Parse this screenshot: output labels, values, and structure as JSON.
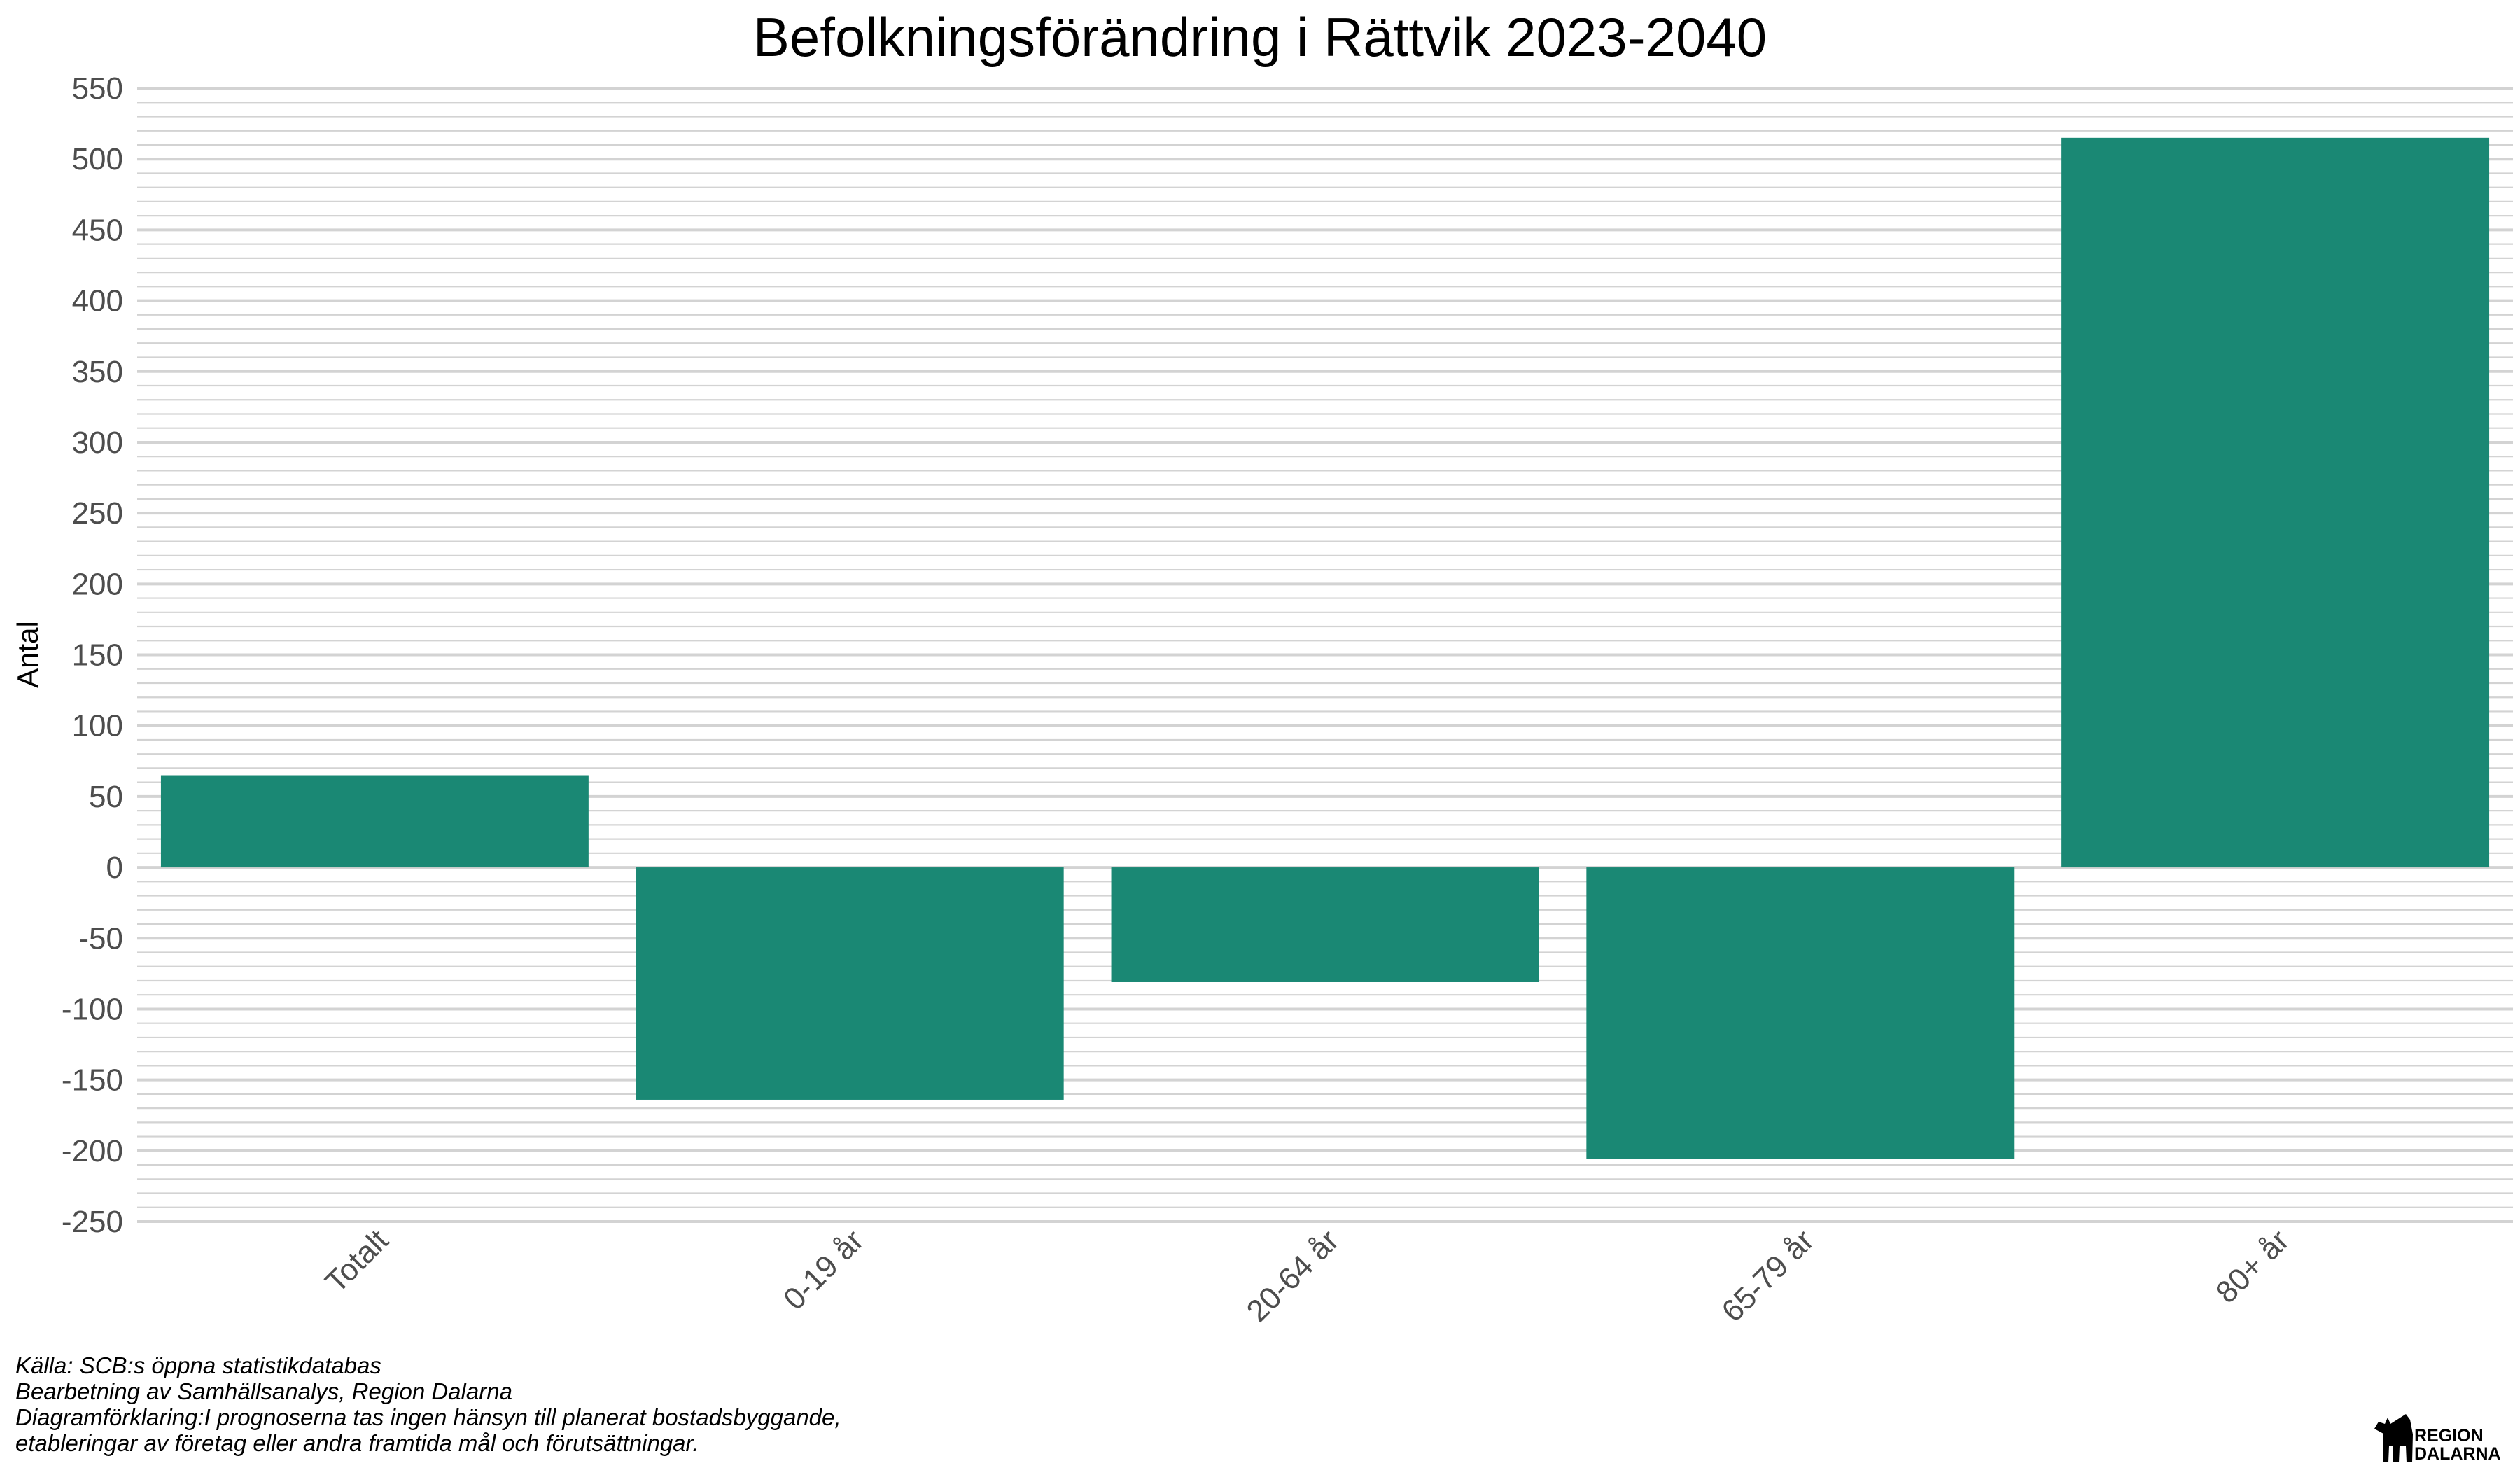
{
  "chart_data": {
    "type": "bar",
    "title": "Befolkningsförändring i Rättvik 2023-2040",
    "xlabel": "",
    "ylabel": "Antal",
    "categories": [
      "Totalt",
      "0-19 år",
      "20-64 år",
      "65-79 år",
      "80+ år"
    ],
    "values": [
      65,
      -164,
      -81,
      -206,
      515
    ],
    "ylim": [
      -250,
      550
    ],
    "yticks": [
      550,
      500,
      450,
      400,
      350,
      300,
      250,
      200,
      150,
      100,
      50,
      0,
      -50,
      -100,
      -150,
      -200,
      -250
    ],
    "minor_step": 10,
    "grid": true,
    "legend": "none",
    "bar_color": "#1a8874",
    "grid_color": "#d3d3d3"
  },
  "captions": [
    "Källa: SCB:s öppna statistikdatabas",
    "Bearbetning av Samhällsanalys, Region Dalarna",
    "Diagramförklaring:I prognoserna tas ingen hänsyn till planerat bostadsbyggande,",
    "etableringar av företag eller andra framtida mål och förutsättningar."
  ],
  "logo": {
    "icon": "dala-horse-icon",
    "line1": "REGION",
    "line2": "DALARNA"
  }
}
